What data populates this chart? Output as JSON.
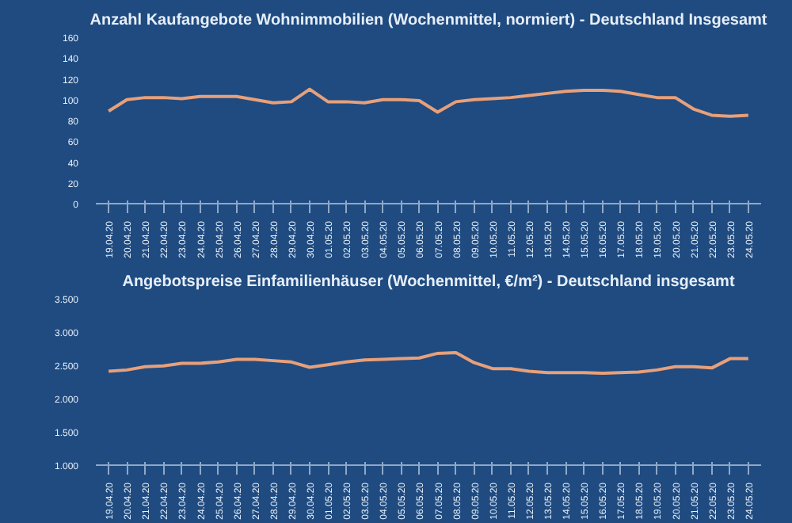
{
  "chart_data": [
    {
      "type": "line",
      "title": "Anzahl Kaufangebote Wohnimmobilien (Wochenmittel, normiert) - Deutschland Insgesamt",
      "categories": [
        "19.04.20",
        "20.04.20",
        "21.04.20",
        "22.04.20",
        "23.04.20",
        "24.04.20",
        "25.04.20",
        "26.04.20",
        "27.04.20",
        "28.04.20",
        "29.04.20",
        "30.04.20",
        "01.05.20",
        "02.05.20",
        "03.05.20",
        "04.05.20",
        "05.05.20",
        "06.05.20",
        "07.05.20",
        "08.05.20",
        "09.05.20",
        "10.05.20",
        "11.05.20",
        "12.05.20",
        "13.05.20",
        "14.05.20",
        "15.05.20",
        "16.05.20",
        "17.05.20",
        "18.05.20",
        "19.05.20",
        "20.05.20",
        "21.05.20",
        "22.05.20",
        "23.05.20",
        "24.05.20"
      ],
      "series": [
        {
          "color": "#e8a07a",
          "values": [
            89,
            100,
            102,
            102,
            101,
            103,
            103,
            103,
            100,
            97,
            98,
            110,
            98,
            98,
            97,
            100,
            100,
            99,
            88,
            98,
            100,
            101,
            102,
            104,
            106,
            108,
            109,
            109,
            108,
            105,
            102,
            102,
            91,
            85,
            84,
            85
          ]
        }
      ],
      "ylim": [
        0,
        160
      ],
      "yticks": [
        0,
        20,
        40,
        60,
        80,
        100,
        120,
        140,
        160
      ],
      "grid": false
    },
    {
      "type": "line",
      "title": "Angebotspreise Einfamilienhäuser (Wochenmittel, €/m²) - Deutschland insgesamt",
      "categories": [
        "19.04.20",
        "20.04.20",
        "21.04.20",
        "22.04.20",
        "23.04.20",
        "24.04.20",
        "25.04.20",
        "26.04.20",
        "27.04.20",
        "28.04.20",
        "29.04.20",
        "30.04.20",
        "01.05.20",
        "02.05.20",
        "03.05.20",
        "04.05.20",
        "05.05.20",
        "06.05.20",
        "07.05.20",
        "08.05.20",
        "09.05.20",
        "10.05.20",
        "11.05.20",
        "12.05.20",
        "13.05.20",
        "14.05.20",
        "15.05.20",
        "16.05.20",
        "17.05.20",
        "18.05.20",
        "19.05.20",
        "20.05.20",
        "21.05.20",
        "22.05.20",
        "23.05.20",
        "24.05.20"
      ],
      "series": [
        {
          "color": "#e8a07a",
          "values": [
            2410,
            2430,
            2480,
            2490,
            2530,
            2530,
            2550,
            2590,
            2590,
            2570,
            2550,
            2470,
            2510,
            2550,
            2580,
            2590,
            2600,
            2610,
            2680,
            2690,
            2540,
            2450,
            2450,
            2410,
            2390,
            2390,
            2390,
            2380,
            2390,
            2400,
            2430,
            2480,
            2480,
            2460,
            2600,
            2600
          ]
        }
      ],
      "ylim": [
        1000,
        3500
      ],
      "yticks": [
        {
          "value": 1000,
          "label": "1.000"
        },
        {
          "value": 1500,
          "label": "1.500"
        },
        {
          "value": 2000,
          "label": "2.000"
        },
        {
          "value": 2500,
          "label": "2.500"
        },
        {
          "value": 3000,
          "label": "3.000"
        },
        {
          "value": 3500,
          "label": "3.500"
        }
      ],
      "grid": false
    }
  ]
}
